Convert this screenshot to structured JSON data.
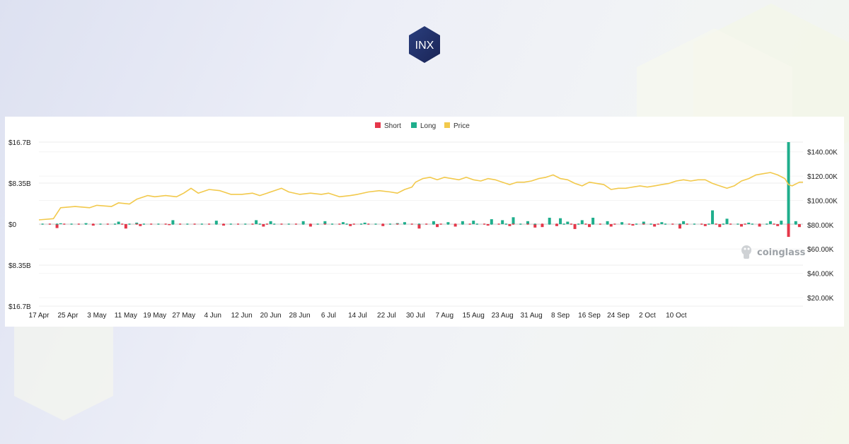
{
  "brand": {
    "logo_text": "INX"
  },
  "watermark": {
    "text": "coinglass"
  },
  "colors": {
    "short": "#e5374a",
    "long": "#1fae8c",
    "price": "#f2c94c",
    "grid": "#eeeeee"
  },
  "chart_data": {
    "type": "bar",
    "legend": [
      {
        "name": "Short",
        "color": "#e5374a"
      },
      {
        "name": "Long",
        "color": "#1fae8c"
      },
      {
        "name": "Price",
        "color": "#f2c94c"
      }
    ],
    "legend_position": "top-center",
    "y_left": {
      "ticks": [
        "$16.7B",
        "$8.35B",
        "$0",
        "$8.35B",
        "$16.7B"
      ],
      "range": [
        -16.7,
        16.7
      ],
      "unit": "B USD"
    },
    "y_right": {
      "ticks": [
        "$140.00K",
        "$120.00K",
        "$100.00K",
        "$80.00K",
        "$60.00K",
        "$40.00K",
        "$20.00K"
      ],
      "range": [
        13,
        148
      ],
      "unit": "K USD"
    },
    "x_ticks": [
      "17 Apr",
      "25 Apr",
      "3 May",
      "11 May",
      "19 May",
      "27 May",
      "4 Jun",
      "12 Jun",
      "20 Jun",
      "28 Jun",
      "6 Jul",
      "14 Jul",
      "22 Jul",
      "30 Jul",
      "7 Aug",
      "15 Aug",
      "23 Aug",
      "31 Aug",
      "8 Sep",
      "16 Sep",
      "24 Sep",
      "2 Oct",
      "10 Oct"
    ],
    "x_range": [
      "17 Apr",
      "13 Oct"
    ],
    "grid": true,
    "series": [
      {
        "name": "Price",
        "type": "line",
        "points": [
          [
            0,
            84
          ],
          [
            4,
            85
          ],
          [
            6,
            94
          ],
          [
            10,
            95
          ],
          [
            14,
            94
          ],
          [
            16,
            96
          ],
          [
            20,
            95
          ],
          [
            22,
            98
          ],
          [
            25,
            97
          ],
          [
            27,
            101
          ],
          [
            30,
            104
          ],
          [
            32,
            103
          ],
          [
            35,
            104
          ],
          [
            38,
            103
          ],
          [
            40,
            106
          ],
          [
            42,
            110
          ],
          [
            44,
            106
          ],
          [
            47,
            109
          ],
          [
            50,
            108
          ],
          [
            53,
            105
          ],
          [
            56,
            105
          ],
          [
            59,
            106
          ],
          [
            61,
            104
          ],
          [
            63,
            106
          ],
          [
            65,
            108
          ],
          [
            67,
            110
          ],
          [
            69,
            107
          ],
          [
            72,
            105
          ],
          [
            75,
            106
          ],
          [
            78,
            105
          ],
          [
            80,
            106
          ],
          [
            83,
            103
          ],
          [
            86,
            104
          ],
          [
            88,
            105
          ],
          [
            91,
            107
          ],
          [
            94,
            108
          ],
          [
            97,
            107
          ],
          [
            99,
            106
          ],
          [
            101,
            109
          ],
          [
            103,
            111
          ],
          [
            104,
            115
          ],
          [
            106,
            118
          ],
          [
            108,
            119
          ],
          [
            110,
            117
          ],
          [
            112,
            119
          ],
          [
            114,
            118
          ],
          [
            116,
            117
          ],
          [
            118,
            119
          ],
          [
            120,
            117
          ],
          [
            122,
            116
          ],
          [
            124,
            118
          ],
          [
            126,
            117
          ],
          [
            128,
            115
          ],
          [
            130,
            113
          ],
          [
            132,
            115
          ],
          [
            134,
            115
          ],
          [
            136,
            116
          ],
          [
            138,
            118
          ],
          [
            140,
            119
          ],
          [
            142,
            121
          ],
          [
            144,
            118
          ],
          [
            146,
            117
          ],
          [
            148,
            114
          ],
          [
            150,
            112
          ],
          [
            152,
            115
          ],
          [
            154,
            114
          ],
          [
            156,
            113
          ],
          [
            158,
            109
          ],
          [
            160,
            110
          ],
          [
            162,
            110
          ],
          [
            164,
            111
          ],
          [
            166,
            112
          ],
          [
            168,
            111
          ],
          [
            170,
            112
          ],
          [
            172,
            113
          ],
          [
            174,
            114
          ],
          [
            176,
            116
          ],
          [
            178,
            117
          ],
          [
            180,
            116
          ],
          [
            182,
            117
          ],
          [
            184,
            117
          ],
          [
            186,
            114
          ],
          [
            188,
            112
          ],
          [
            190,
            110
          ],
          [
            192,
            112
          ],
          [
            194,
            116
          ],
          [
            196,
            118
          ],
          [
            198,
            121
          ],
          [
            200,
            122
          ],
          [
            202,
            123
          ],
          [
            204,
            121
          ],
          [
            206,
            118
          ],
          [
            207,
            113
          ],
          [
            208,
            112
          ],
          [
            210,
            115
          ],
          [
            211,
            115
          ]
        ]
      },
      {
        "name": "Long",
        "type": "bar",
        "values": [
          [
            6,
            0.1
          ],
          [
            13,
            0.2
          ],
          [
            22,
            0.5
          ],
          [
            27,
            0.3
          ],
          [
            37,
            0.8
          ],
          [
            49,
            0.7
          ],
          [
            60,
            0.8
          ],
          [
            64,
            0.6
          ],
          [
            73,
            0.6
          ],
          [
            79,
            0.6
          ],
          [
            84,
            0.4
          ],
          [
            90,
            0.3
          ],
          [
            99,
            0.2
          ],
          [
            101,
            0.4
          ],
          [
            109,
            0.6
          ],
          [
            113,
            0.4
          ],
          [
            117,
            0.6
          ],
          [
            120,
            0.7
          ],
          [
            125,
            1.0
          ],
          [
            128,
            0.8
          ],
          [
            131,
            1.4
          ],
          [
            135,
            0.6
          ],
          [
            141,
            1.3
          ],
          [
            144,
            1.2
          ],
          [
            146,
            0.5
          ],
          [
            150,
            0.8
          ],
          [
            153,
            1.3
          ],
          [
            157,
            0.6
          ],
          [
            161,
            0.4
          ],
          [
            167,
            0.5
          ],
          [
            172,
            0.4
          ],
          [
            178,
            0.6
          ],
          [
            186,
            2.8
          ],
          [
            190,
            1.1
          ],
          [
            196,
            0.3
          ],
          [
            202,
            0.6
          ],
          [
            205,
            0.7
          ],
          [
            207,
            16.7
          ],
          [
            209,
            0.6
          ]
        ]
      },
      {
        "name": "Short",
        "type": "bar",
        "values": [
          [
            5,
            -0.8
          ],
          [
            15,
            -0.3
          ],
          [
            24,
            -0.9
          ],
          [
            28,
            -0.4
          ],
          [
            36,
            -0.2
          ],
          [
            51,
            -0.3
          ],
          [
            62,
            -0.5
          ],
          [
            75,
            -0.5
          ],
          [
            86,
            -0.4
          ],
          [
            95,
            -0.4
          ],
          [
            105,
            -0.9
          ],
          [
            110,
            -0.6
          ],
          [
            115,
            -0.5
          ],
          [
            124,
            -0.3
          ],
          [
            130,
            -0.4
          ],
          [
            137,
            -0.7
          ],
          [
            139,
            -0.6
          ],
          [
            143,
            -0.4
          ],
          [
            148,
            -1.0
          ],
          [
            152,
            -0.6
          ],
          [
            158,
            -0.5
          ],
          [
            164,
            -0.3
          ],
          [
            170,
            -0.5
          ],
          [
            177,
            -0.9
          ],
          [
            184,
            -0.4
          ],
          [
            188,
            -0.6
          ],
          [
            194,
            -0.5
          ],
          [
            199,
            -0.5
          ],
          [
            204,
            -0.4
          ],
          [
            207,
            -2.6
          ],
          [
            210,
            -0.6
          ]
        ]
      }
    ]
  }
}
